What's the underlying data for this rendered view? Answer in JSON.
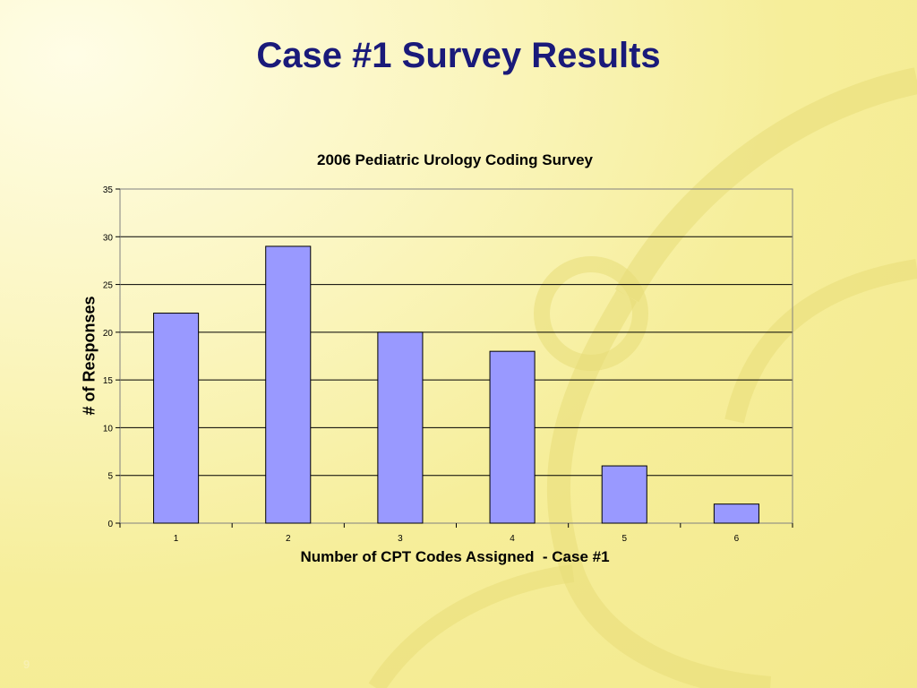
{
  "slide": {
    "title": "Case #1 Survey Results",
    "page_number": "9"
  },
  "colors": {
    "title": "#1a1a7a",
    "bar_fill": "#9999ff",
    "bar_stroke": "#000000",
    "background": "#f6ee9a"
  },
  "chart_data": {
    "type": "bar",
    "title": "2006 Pediatric Urology Coding Survey",
    "xlabel": "Number of CPT Codes Assigned  - Case #1",
    "ylabel": "# of Responses",
    "categories": [
      "1",
      "2",
      "3",
      "4",
      "5",
      "6"
    ],
    "values": [
      22,
      29,
      20,
      18,
      6,
      2
    ],
    "ylim": [
      0,
      35
    ],
    "yticks": [
      0,
      5,
      10,
      15,
      20,
      25,
      30,
      35
    ],
    "grid": true,
    "legend": "none"
  }
}
